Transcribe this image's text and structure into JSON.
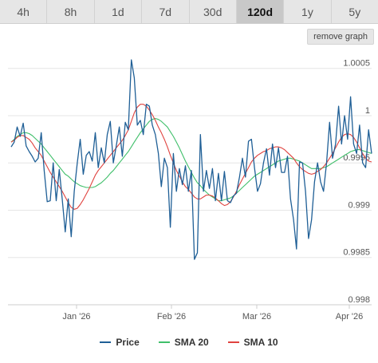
{
  "tabs": [
    {
      "label": "4h",
      "active": false
    },
    {
      "label": "8h",
      "active": false
    },
    {
      "label": "1d",
      "active": false
    },
    {
      "label": "7d",
      "active": false
    },
    {
      "label": "30d",
      "active": false
    },
    {
      "label": "120d",
      "active": true
    },
    {
      "label": "1y",
      "active": false
    },
    {
      "label": "5y",
      "active": false
    }
  ],
  "remove_graph_label": "remove graph",
  "colors": {
    "price": "#1f5f96",
    "sma20": "#3fbf6a",
    "sma10": "#e0433f",
    "grid": "#e6e6e6"
  },
  "chart_data": {
    "type": "line",
    "xlabel": "",
    "ylabel": "",
    "x_ticks": [
      "Jan '26",
      "Feb '26",
      "Mar '26",
      "Apr '26"
    ],
    "y_ticks": [
      "1.0005",
      "1",
      "0.9995",
      "0.999",
      "0.9985",
      "0.998"
    ],
    "ylim": [
      0.998,
      1.0007
    ],
    "grid": true,
    "legend_position": "bottom",
    "series": [
      {
        "name": "Price",
        "values": [
          0.99967,
          0.99972,
          0.99988,
          0.99978,
          0.99992,
          0.99968,
          0.99962,
          0.99957,
          0.99951,
          0.99955,
          0.99982,
          0.99942,
          0.99909,
          0.9991,
          0.9995,
          0.9991,
          0.99943,
          0.99912,
          0.99877,
          0.99912,
          0.99872,
          0.9992,
          0.9995,
          0.99975,
          0.99938,
          0.99958,
          0.99962,
          0.99952,
          0.99982,
          0.99945,
          0.99966,
          0.9995,
          0.9998,
          0.99994,
          0.9995,
          0.99968,
          0.99988,
          0.99957,
          0.99993,
          0.99985,
          1.00059,
          1.0004,
          0.9999,
          0.99995,
          0.9998,
          1.00012,
          1.0001,
          0.9999,
          0.9998,
          0.9996,
          0.99925,
          0.99955,
          0.99945,
          0.99882,
          0.9996,
          0.9992,
          0.99944,
          0.99927,
          0.99947,
          0.9992,
          0.99942,
          0.99848,
          0.99855,
          0.9998,
          0.9992,
          0.99942,
          0.99923,
          0.99944,
          0.9991,
          0.99939,
          0.9991,
          0.99941,
          0.9991,
          0.99908,
          0.99915,
          0.99918,
          0.99935,
          0.99955,
          0.99935,
          0.99973,
          0.99975,
          0.99945,
          0.9992,
          0.99928,
          0.9995,
          0.99965,
          0.99937,
          0.9997,
          0.99945,
          0.99966,
          0.9994,
          0.9994,
          0.99957,
          0.99912,
          0.9989,
          0.99859,
          0.99951,
          0.9995,
          0.9992,
          0.9987,
          0.9989,
          0.9993,
          0.9995,
          0.9993,
          0.9992,
          0.9995,
          0.99993,
          0.99955,
          0.9997,
          1.0001,
          0.9997,
          1.0,
          0.99975,
          1.0002,
          0.9997,
          0.9996,
          0.9999,
          0.9995,
          0.99945,
          0.99985,
          0.9996
        ]
      },
      {
        "name": "SMA 20",
        "values": [
          0.99972,
          0.99975,
          0.99978,
          0.9998,
          0.99982,
          0.99982,
          0.99981,
          0.99979,
          0.99976,
          0.99973,
          0.9997,
          0.99966,
          0.99962,
          0.99958,
          0.99954,
          0.9995,
          0.99946,
          0.99942,
          0.99938,
          0.99936,
          0.99933,
          0.9993,
          0.99928,
          0.99926,
          0.99925,
          0.99924,
          0.99924,
          0.99924,
          0.99925,
          0.99927,
          0.99929,
          0.99932,
          0.99935,
          0.99939,
          0.99942,
          0.99946,
          0.9995,
          0.99954,
          0.99958,
          0.99962,
          0.99967,
          0.99972,
          0.99977,
          0.99982,
          0.99986,
          0.9999,
          0.99994,
          0.99996,
          0.99997,
          0.99996,
          0.99994,
          0.99991,
          0.99988,
          0.99983,
          0.99978,
          0.99972,
          0.99966,
          0.99959,
          0.99952,
          0.99946,
          0.9994,
          0.99934,
          0.99929,
          0.99926,
          0.99922,
          0.99919,
          0.99916,
          0.99914,
          0.99912,
          0.9991,
          0.9991,
          0.99911,
          0.99912,
          0.99913,
          0.99915,
          0.99918,
          0.99921,
          0.99924,
          0.99927,
          0.9993,
          0.99933,
          0.99936,
          0.99938,
          0.9994,
          0.99942,
          0.99944,
          0.99946,
          0.99948,
          0.9995,
          0.99952,
          0.99953,
          0.99954,
          0.99955,
          0.99955,
          0.99954,
          0.99953,
          0.99952,
          0.9995,
          0.99948,
          0.99946,
          0.99944,
          0.99944,
          0.99944,
          0.99944,
          0.99945,
          0.99946,
          0.99948,
          0.9995,
          0.99952,
          0.99954,
          0.99956,
          0.99958,
          0.9996,
          0.99962,
          0.99963,
          0.99964,
          0.99964,
          0.99963,
          0.99962,
          0.99961,
          0.9996
        ]
      },
      {
        "name": "SMA 10",
        "values": [
          0.99972,
          0.99974,
          0.99977,
          0.99979,
          0.99979,
          0.99977,
          0.99975,
          0.99971,
          0.99966,
          0.99962,
          0.99958,
          0.99952,
          0.99946,
          0.9994,
          0.99935,
          0.9993,
          0.99925,
          0.9992,
          0.99914,
          0.99908,
          0.99903,
          0.99901,
          0.99902,
          0.99906,
          0.99911,
          0.99917,
          0.99923,
          0.9993,
          0.99937,
          0.99942,
          0.99946,
          0.9995,
          0.99954,
          0.99958,
          0.99962,
          0.99966,
          0.9997,
          0.99974,
          0.99979,
          0.99985,
          0.99994,
          1.00003,
          1.00009,
          1.00012,
          1.00012,
          1.0001,
          1.00006,
          1.00001,
          0.99995,
          0.99988,
          0.99982,
          0.99975,
          0.99967,
          0.99958,
          0.9995,
          0.99942,
          0.99936,
          0.9993,
          0.99925,
          0.99922,
          0.99918,
          0.99914,
          0.99912,
          0.99912,
          0.99914,
          0.99916,
          0.99916,
          0.99915,
          0.99913,
          0.9991,
          0.99907,
          0.99905,
          0.99906,
          0.99909,
          0.99914,
          0.9992,
          0.99927,
          0.99933,
          0.99939,
          0.99945,
          0.99951,
          0.99955,
          0.99958,
          0.9996,
          0.99962,
          0.99963,
          0.99965,
          0.99966,
          0.99967,
          0.99967,
          0.99966,
          0.99964,
          0.99961,
          0.99958,
          0.99955,
          0.9995,
          0.99946,
          0.99943,
          0.99941,
          0.99939,
          0.99938,
          0.99939,
          0.99941,
          0.99943,
          0.99946,
          0.9995,
          0.99955,
          0.9996,
          0.99966,
          0.99972,
          0.99977,
          0.9998,
          0.99981,
          0.9998,
          0.99977,
          0.99972,
          0.99966,
          0.9996,
          0.99955,
          0.99952,
          0.99951
        ]
      }
    ]
  }
}
